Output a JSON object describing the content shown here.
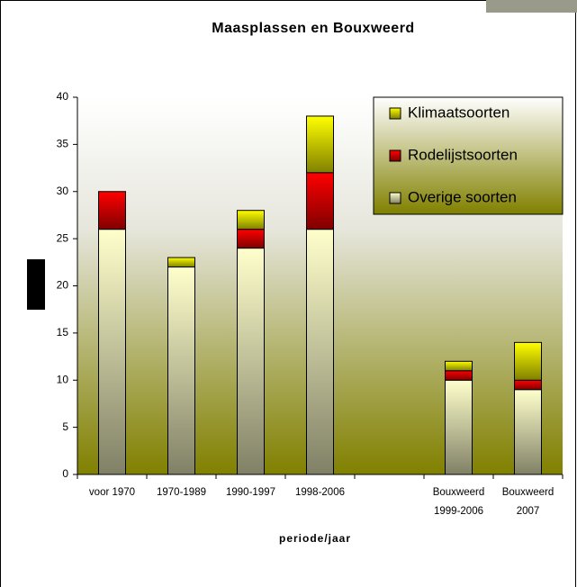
{
  "chart_data": {
    "type": "stacked_bar",
    "title": "Maasplassen en Bouxweerd",
    "x_label": "periode/jaar",
    "categories": [
      "voor 1970",
      "1970-1989",
      "1990-1997",
      "1998-2006",
      null,
      "Bouxweerd 1999-2006",
      "Bouxweerd 2007"
    ],
    "series": [
      {
        "name": "Overige soorten",
        "color": "#ffffcc",
        "values": [
          26,
          22,
          24,
          26,
          null,
          10,
          9
        ]
      },
      {
        "name": "Rodelijstsoorten",
        "color": "#ff0000",
        "values": [
          4,
          0,
          2,
          6,
          null,
          1,
          1
        ]
      },
      {
        "name": "Klimaatsoorten",
        "color": "#ffff00",
        "values": [
          0,
          1,
          2,
          6,
          null,
          1,
          4
        ]
      }
    ],
    "ylim": [
      0,
      40
    ],
    "yticks": [
      0,
      5,
      10,
      15,
      20,
      25,
      30,
      35,
      40
    ],
    "legend": "upper right"
  }
}
